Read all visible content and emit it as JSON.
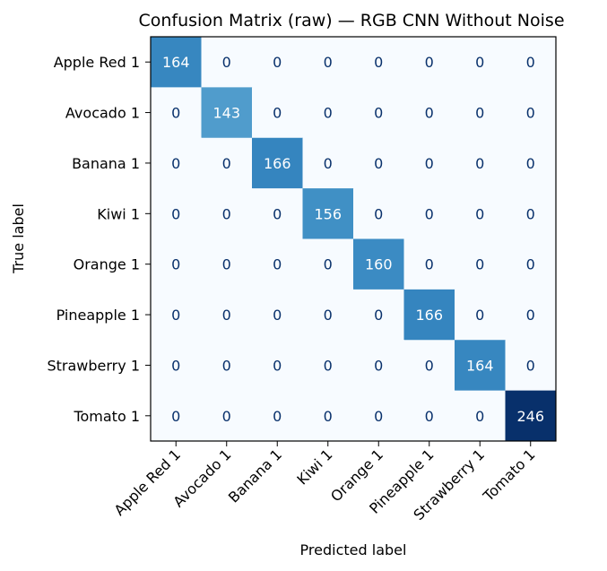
{
  "chart_data": {
    "type": "heatmap",
    "title": "Confusion Matrix (raw) — RGB CNN Without Noise",
    "xlabel": "Predicted label",
    "ylabel": "True label",
    "x_categories": [
      "Apple Red 1",
      "Avocado 1",
      "Banana 1",
      "Kiwi 1",
      "Orange 1",
      "Pineapple 1",
      "Strawberry 1",
      "Tomato 1"
    ],
    "y_categories": [
      "Apple Red 1",
      "Avocado 1",
      "Banana 1",
      "Kiwi 1",
      "Orange 1",
      "Pineapple 1",
      "Strawberry 1",
      "Tomato 1"
    ],
    "values": [
      [
        164,
        0,
        0,
        0,
        0,
        0,
        0,
        0
      ],
      [
        0,
        143,
        0,
        0,
        0,
        0,
        0,
        0
      ],
      [
        0,
        0,
        166,
        0,
        0,
        0,
        0,
        0
      ],
      [
        0,
        0,
        0,
        156,
        0,
        0,
        0,
        0
      ],
      [
        0,
        0,
        0,
        0,
        160,
        0,
        0,
        0
      ],
      [
        0,
        0,
        0,
        0,
        0,
        166,
        0,
        0
      ],
      [
        0,
        0,
        0,
        0,
        0,
        0,
        164,
        0
      ],
      [
        0,
        0,
        0,
        0,
        0,
        0,
        0,
        246
      ]
    ],
    "colormap": "Blues",
    "color_range": [
      0,
      246
    ],
    "colorbar": false
  }
}
